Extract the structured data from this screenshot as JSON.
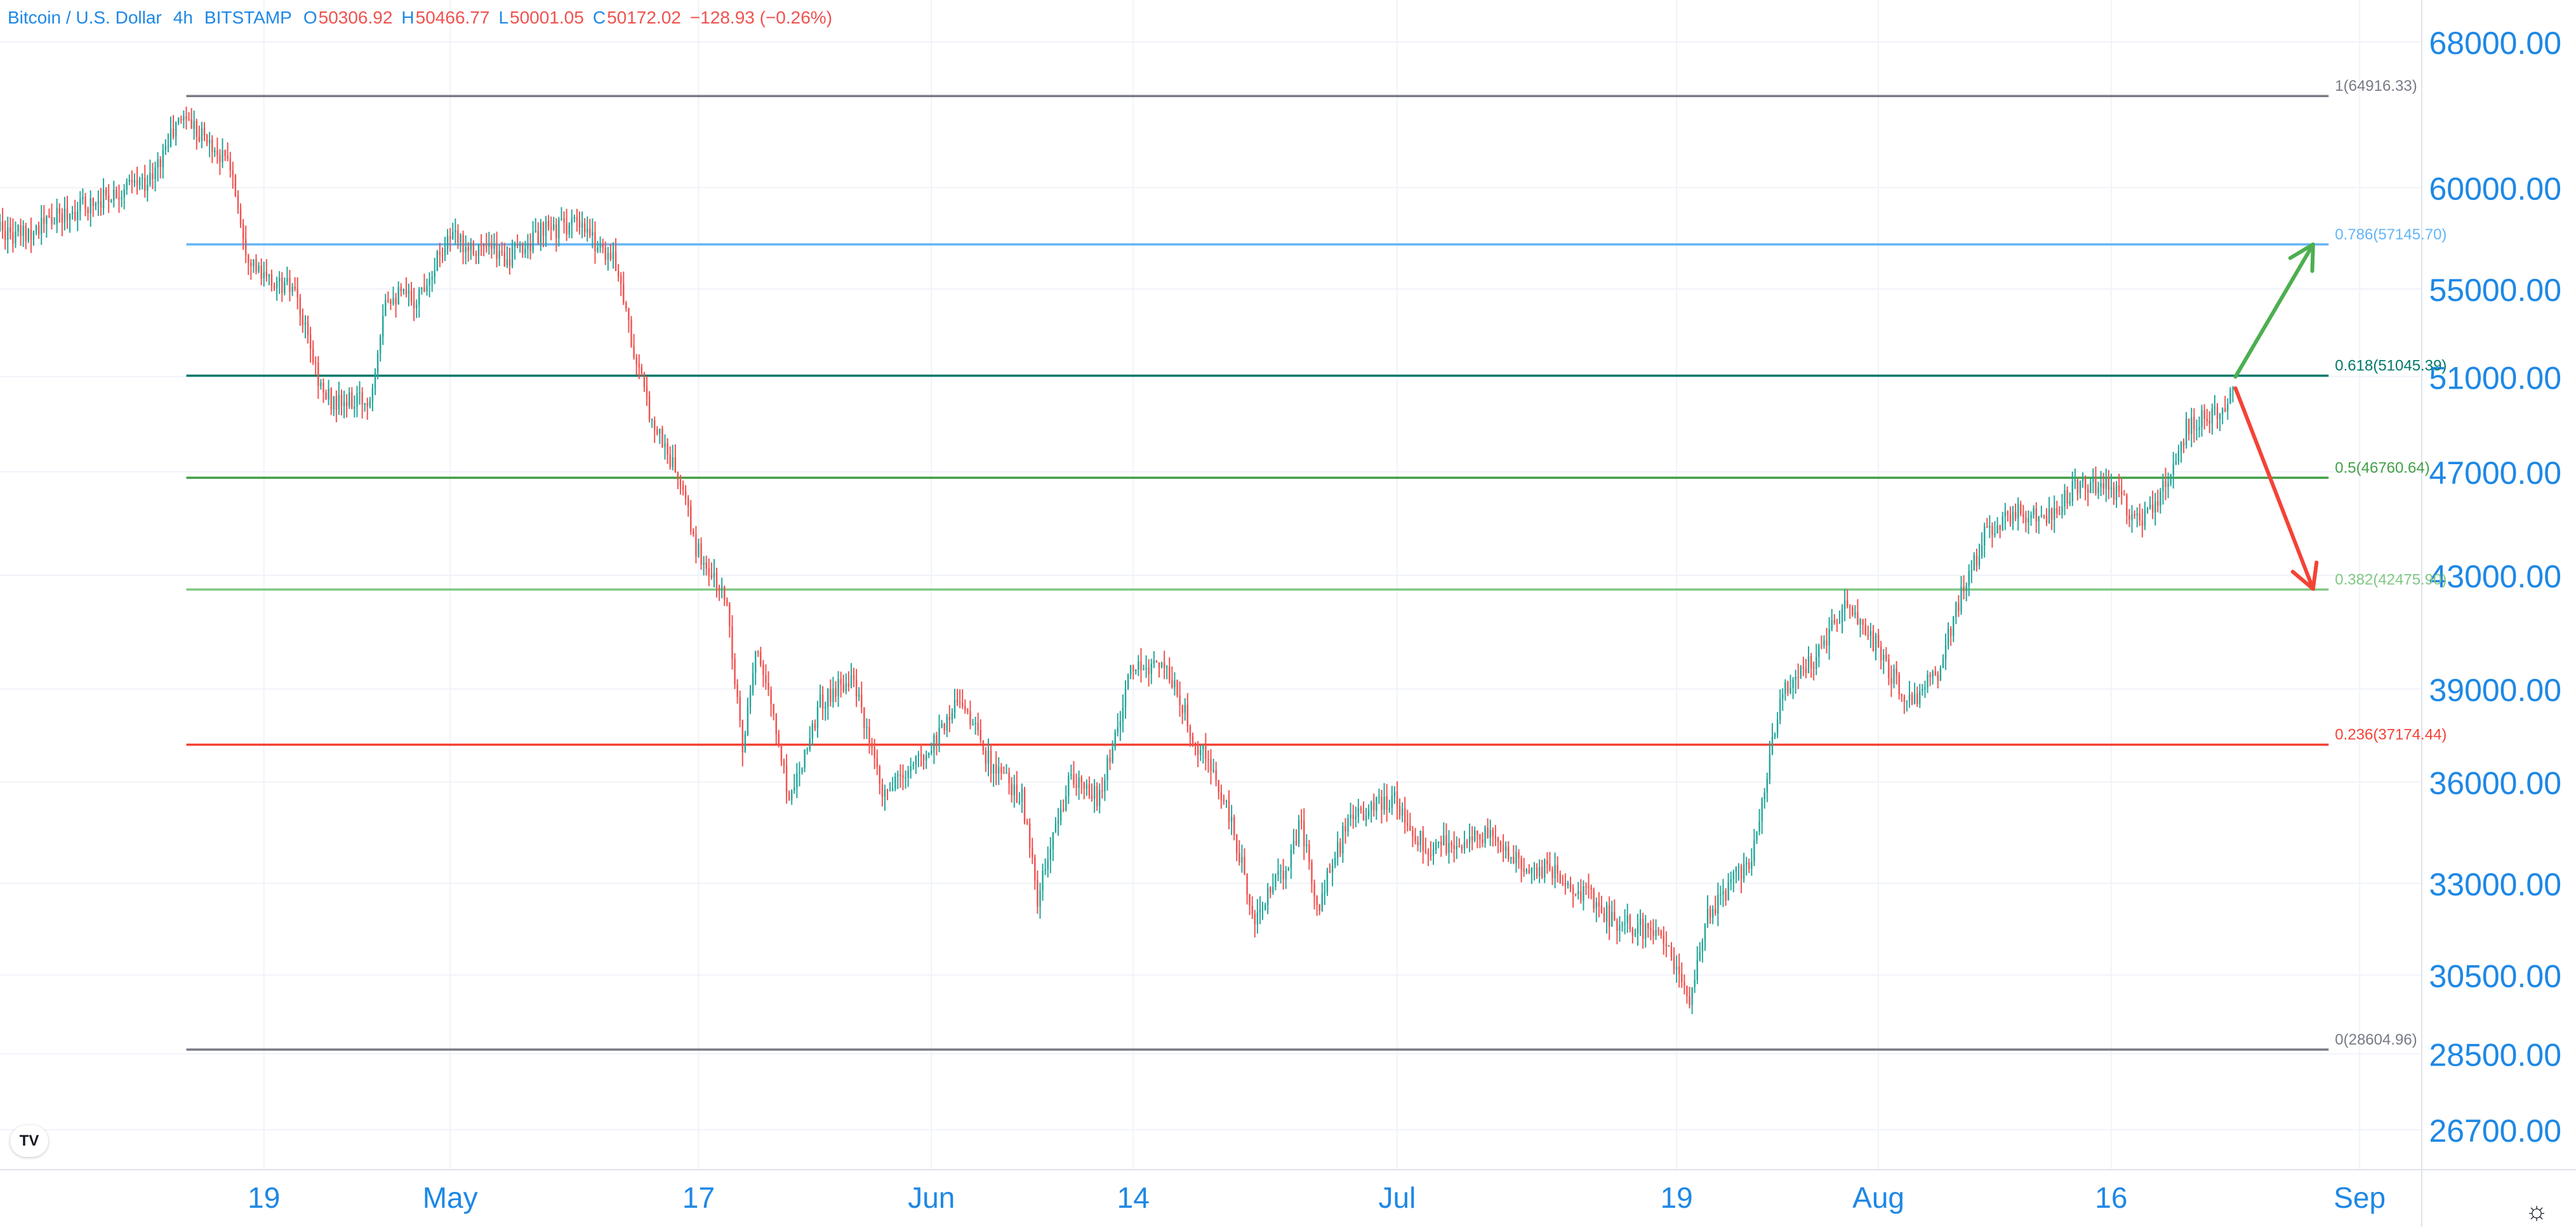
{
  "header": {
    "symbol": "Bitcoin / U.S. Dollar",
    "interval": "4h",
    "exchange": "BITSTAMP",
    "ohlc": [
      {
        "k": "O",
        "v": "50306.92"
      },
      {
        "k": "H",
        "v": "50466.77"
      },
      {
        "k": "L",
        "v": "50001.05"
      },
      {
        "k": "C",
        "v": "50172.02"
      }
    ],
    "change": "−128.93 (−0.26%)"
  },
  "logo_text": "TV",
  "settings_icon": "sun-settings-icon",
  "colors": {
    "up": "#26a69a",
    "down": "#ef5350",
    "axis_text": "#1e88e5",
    "grid": "#f0f3fa",
    "fib_1": "#787b86",
    "fib_0786": "#64b5f6",
    "fib_0618": "#00796b",
    "fib_05": "#43a047",
    "fib_0382": "#81c784",
    "fib_0236": "#f44336",
    "fib_0": "#787b86",
    "arrow_up": "#4caf50",
    "arrow_down": "#f44336"
  },
  "chart_data": {
    "type": "candlestick",
    "title": "Bitcoin / U.S. Dollar",
    "y_scale": "log",
    "ylim": [
      25800,
      70500
    ],
    "x_range": [
      "2021-04-02",
      "2021-09-05"
    ],
    "grid": true,
    "y_ticks": [
      {
        "value": 26700,
        "label": "26700.00"
      },
      {
        "value": 28500,
        "label": "28500.00"
      },
      {
        "value": 30500,
        "label": "30500.00"
      },
      {
        "value": 33000,
        "label": "33000.00"
      },
      {
        "value": 36000,
        "label": "36000.00"
      },
      {
        "value": 39000,
        "label": "39000.00"
      },
      {
        "value": 43000,
        "label": "43000.00"
      },
      {
        "value": 47000,
        "label": "47000.00"
      },
      {
        "value": 51000,
        "label": "51000.00"
      },
      {
        "value": 55000,
        "label": "55000.00"
      },
      {
        "value": 60000,
        "label": "60000.00"
      },
      {
        "value": 68000,
        "label": "68000.00"
      }
    ],
    "x_ticks": [
      {
        "date": "2021-04-19",
        "label": "19"
      },
      {
        "date": "2021-05-01",
        "label": "May"
      },
      {
        "date": "2021-05-17",
        "label": "17"
      },
      {
        "date": "2021-06-01",
        "label": "Jun"
      },
      {
        "date": "2021-06-14",
        "label": "14"
      },
      {
        "date": "2021-07-01",
        "label": "Jul"
      },
      {
        "date": "2021-07-19",
        "label": "19"
      },
      {
        "date": "2021-08-01",
        "label": "Aug"
      },
      {
        "date": "2021-08-16",
        "label": "16"
      },
      {
        "date": "2021-09-01",
        "label": "Sep"
      }
    ],
    "price_path": [
      [
        "2021-04-01",
        58800
      ],
      [
        "2021-04-03",
        57500
      ],
      [
        "2021-04-06",
        58500
      ],
      [
        "2021-04-09",
        59600
      ],
      [
        "2021-04-12",
        60500
      ],
      [
        "2021-04-13",
        62500
      ],
      [
        "2021-04-14",
        63900
      ],
      [
        "2021-04-15",
        63000
      ],
      [
        "2021-04-16",
        62000
      ],
      [
        "2021-04-17",
        61200
      ],
      [
        "2021-04-18",
        57000
      ],
      [
        "2021-04-19",
        55500
      ],
      [
        "2021-04-21",
        55000
      ],
      [
        "2021-04-23",
        50200
      ],
      [
        "2021-04-24",
        49800
      ],
      [
        "2021-04-26",
        50000
      ],
      [
        "2021-04-27",
        54800
      ],
      [
        "2021-04-29",
        54500
      ],
      [
        "2021-05-01",
        57500
      ],
      [
        "2021-05-03",
        57000
      ],
      [
        "2021-05-05",
        56500
      ],
      [
        "2021-05-07",
        57700
      ],
      [
        "2021-05-09",
        58200
      ],
      [
        "2021-05-11",
        57000
      ],
      [
        "2021-05-12",
        56000
      ],
      [
        "2021-05-13",
        52000
      ],
      [
        "2021-05-14",
        49500
      ],
      [
        "2021-05-16",
        46500
      ],
      [
        "2021-05-17",
        44000
      ],
      [
        "2021-05-19",
        42000
      ],
      [
        "2021-05-20",
        37000
      ],
      [
        "2021-05-21",
        40500
      ],
      [
        "2021-05-23",
        35500
      ],
      [
        "2021-05-25",
        38500
      ],
      [
        "2021-05-27",
        39500
      ],
      [
        "2021-05-29",
        35500
      ],
      [
        "2021-06-01",
        37000
      ],
      [
        "2021-06-03",
        38800
      ],
      [
        "2021-06-05",
        36500
      ],
      [
        "2021-06-07",
        35500
      ],
      [
        "2021-06-08",
        32500
      ],
      [
        "2021-06-10",
        36000
      ],
      [
        "2021-06-12",
        35500
      ],
      [
        "2021-06-14",
        39500
      ],
      [
        "2021-06-16",
        40000
      ],
      [
        "2021-06-18",
        37500
      ],
      [
        "2021-06-20",
        35500
      ],
      [
        "2021-06-22",
        32000
      ],
      [
        "2021-06-24",
        33500
      ],
      [
        "2021-06-25",
        34800
      ],
      [
        "2021-06-26",
        32200
      ],
      [
        "2021-06-28",
        34800
      ],
      [
        "2021-07-01",
        35500
      ],
      [
        "2021-07-03",
        34000
      ],
      [
        "2021-07-07",
        34400
      ],
      [
        "2021-07-09",
        33600
      ],
      [
        "2021-07-12",
        33200
      ],
      [
        "2021-07-15",
        32000
      ],
      [
        "2021-07-18",
        31600
      ],
      [
        "2021-07-20",
        29900
      ],
      [
        "2021-07-21",
        32000
      ],
      [
        "2021-07-24",
        33800
      ],
      [
        "2021-07-26",
        39000
      ],
      [
        "2021-07-28",
        40000
      ],
      [
        "2021-07-30",
        41800
      ],
      [
        "2021-08-01",
        40500
      ],
      [
        "2021-08-03",
        38500
      ],
      [
        "2021-08-05",
        39500
      ],
      [
        "2021-08-06",
        41500
      ],
      [
        "2021-08-08",
        44500
      ],
      [
        "2021-08-10",
        45500
      ],
      [
        "2021-08-12",
        45000
      ],
      [
        "2021-08-14",
        46500
      ],
      [
        "2021-08-16",
        46500
      ],
      [
        "2021-08-18",
        45000
      ],
      [
        "2021-08-20",
        46800
      ],
      [
        "2021-08-21",
        48800
      ],
      [
        "2021-08-23",
        49600
      ],
      [
        "2021-08-24",
        50172
      ]
    ],
    "fib_levels": [
      {
        "ratio": 1,
        "price": 64916.33,
        "label": "1(64916.33)",
        "color_key": "fib_1"
      },
      {
        "ratio": 0.786,
        "price": 57145.7,
        "label": "0.786(57145.70)",
        "color_key": "fib_0786"
      },
      {
        "ratio": 0.618,
        "price": 51045.39,
        "label": "0.618(51045.39)",
        "color_key": "fib_0618"
      },
      {
        "ratio": 0.5,
        "price": 46760.64,
        "label": "0.5(46760.64)",
        "color_key": "fib_05"
      },
      {
        "ratio": 0.382,
        "price": 42475.9,
        "label": "0.382(42475.90)",
        "color_key": "fib_0382"
      },
      {
        "ratio": 0.236,
        "price": 37174.44,
        "label": "0.236(37174.44)",
        "color_key": "fib_0236"
      },
      {
        "ratio": 0,
        "price": 28604.96,
        "label": "0(28604.96)",
        "color_key": "fib_0"
      }
    ],
    "fib_start": "2021-04-14",
    "fib_end": "2021-08-30",
    "arrows": [
      {
        "name": "bullish-arrow",
        "from": [
          "2021-08-24",
          51000
        ],
        "to": [
          "2021-08-29",
          57145
        ],
        "color_key": "arrow_up"
      },
      {
        "name": "bearish-arrow",
        "from": [
          "2021-08-24",
          50500
        ],
        "to": [
          "2021-08-29",
          42500
        ],
        "color_key": "arrow_down"
      }
    ]
  }
}
